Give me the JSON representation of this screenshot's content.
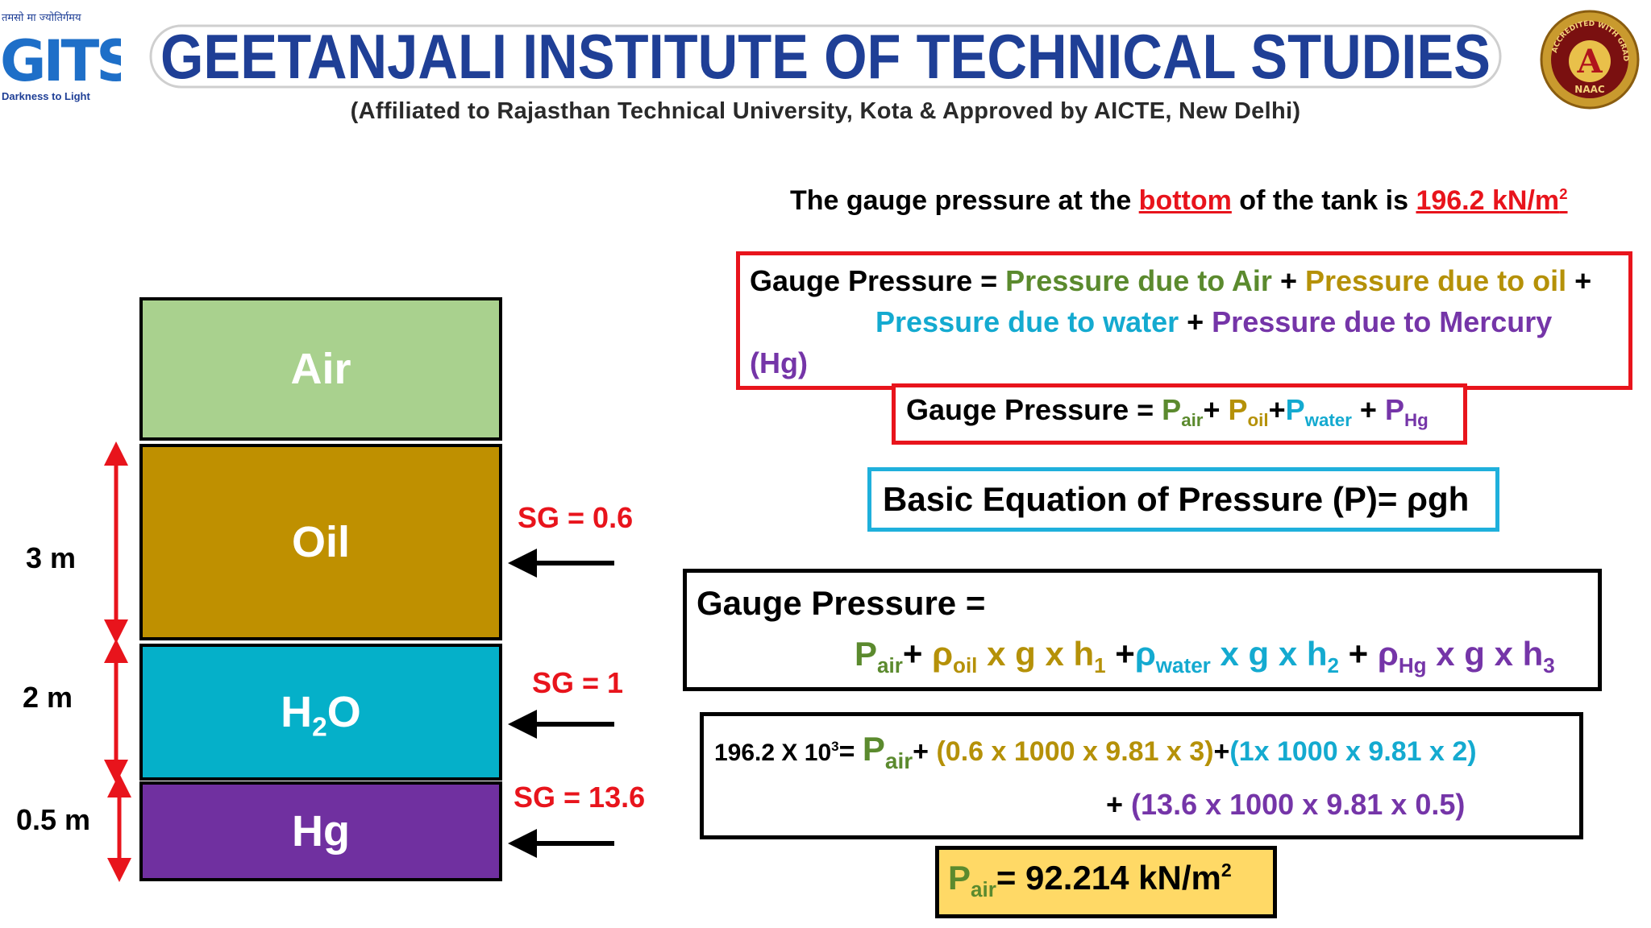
{
  "header": {
    "logo_motto_top": "तमसो मा ज्योतिर्गमय",
    "logo_letters": "GITS",
    "logo_motto_bottom": "Darkness to Light",
    "institute_name": "GEETANJALI INSTITUTE OF TECHNICAL STUDIES",
    "affiliation": "(Affiliated to Rajasthan Technical University, Kota & Approved by AICTE, New Delhi)",
    "naac_grade": "A",
    "naac_ring_text": "ACCREDITED WITH GRADE",
    "naac_bottom": "NAAC"
  },
  "diagram": {
    "layers": [
      {
        "name": "Air",
        "color": "#a9d18e"
      },
      {
        "name": "Oil",
        "color": "#bf9000"
      },
      {
        "name_main": "H",
        "name_sub": "2",
        "name_end": "O",
        "color": "#05b0c9"
      },
      {
        "name": "Hg",
        "color": "#7030a0"
      }
    ],
    "heights": [
      "3 m",
      "2 m",
      "0.5 m"
    ],
    "specific_gravities": [
      "SG = 0.6",
      "SG = 1",
      "SG = 13.6"
    ]
  },
  "statement": {
    "prefix": "The gauge pressure at the ",
    "highlight_word": "bottom",
    "middle": " of the tank is ",
    "value": "196.2 kN/m",
    "value_sup": "2"
  },
  "box1": {
    "label": "Gauge Pressure = ",
    "term_air": "Pressure due to Air",
    "plus1": " + ",
    "term_oil": "Pressure due to oil",
    "plus2": " +",
    "term_water": "Pressure due to water",
    "plus3": " + ",
    "term_hg": "Pressure due to Mercury",
    "term_hg_end": "(Hg)"
  },
  "box2": {
    "label": "Gauge Pressure = ",
    "p": "P",
    "sub_air": "air",
    "sub_oil": "oil",
    "sub_water": "water",
    "sub_hg": "Hg",
    "plus": "+ ",
    "plus_tight": "+",
    "plus_spaced": " + "
  },
  "basic_equation": "Basic Equation of Pressure (P)= ρgh",
  "box3": {
    "label": "Gauge Pressure =",
    "p": "P",
    "rho": "ρ",
    "sub_air": "air",
    "sub_oil": "oil",
    "sub_water": "water",
    "sub_hg": "Hg",
    "xgxh": " x g x h",
    "h1": "1",
    "h2": "2",
    "h3": "3",
    "plus": "+ ",
    "plus_wide": " +"
  },
  "box4": {
    "lhs": "196.2 X 10",
    "lhs_sup": "3",
    "eq": "= ",
    "p": "P",
    "sub_air": "air",
    "plus": "+ ",
    "plus_tight": "+",
    "oil_term": "(0.6 x 1000 x 9.81 x 3)",
    "water_term": "(1x 1000 x 9.81 x 2)",
    "hg_plus": "+ ",
    "hg_term": "(13.6 x 1000 x 9.81 x 0.5)"
  },
  "result": {
    "p": "P",
    "sub": "air",
    "value": "= 92.214 kN/m",
    "sup": "2"
  },
  "colors": {
    "red": "#e8141c",
    "green": "#5b8a2e",
    "olive": "#b59108",
    "cyan": "#14aad0",
    "purple": "#7535a8",
    "banner_blue": "#1f3f96",
    "result_bg": "#ffd966"
  }
}
